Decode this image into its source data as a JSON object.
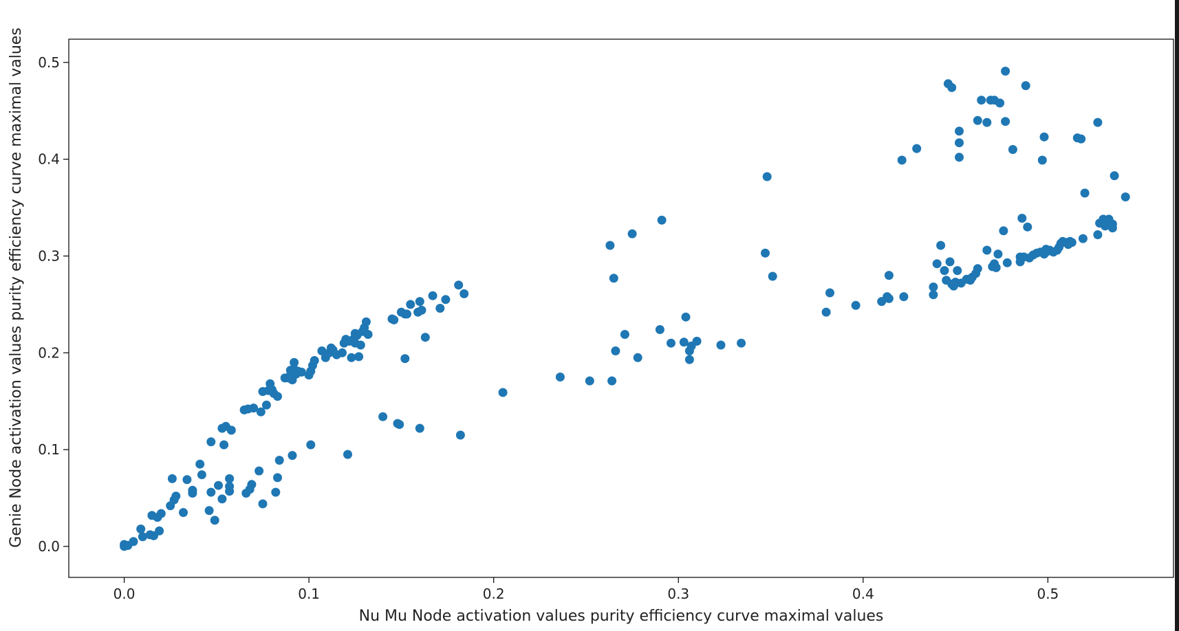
{
  "chart_data": {
    "type": "scatter",
    "title": "",
    "xlabel": "Nu Mu Node activation values purity efficiency curve maximal values",
    "ylabel": "Genie Node activation values purity efficiency curve maximal values",
    "xlim": [
      -0.03,
      0.568
    ],
    "ylim": [
      -0.032,
      0.524
    ],
    "xticks": [
      0.0,
      0.1,
      0.2,
      0.3,
      0.4,
      0.5
    ],
    "xtick_labels": [
      "0.0",
      "0.1",
      "0.2",
      "0.3",
      "0.4",
      "0.5"
    ],
    "yticks": [
      0.0,
      0.1,
      0.2,
      0.3,
      0.4,
      0.5
    ],
    "ytick_labels": [
      "0.0",
      "0.1",
      "0.2",
      "0.3",
      "0.4",
      "0.5"
    ],
    "grid": false,
    "legend": "none",
    "marker_color": "#1f77b4",
    "series": [
      {
        "points": [
          [
            0.0,
            0.0
          ],
          [
            0.0,
            0.002
          ],
          [
            0.002,
            0.001
          ],
          [
            0.005,
            0.005
          ],
          [
            0.009,
            0.018
          ],
          [
            0.01,
            0.01
          ],
          [
            0.014,
            0.012
          ],
          [
            0.015,
            0.032
          ],
          [
            0.016,
            0.011
          ],
          [
            0.018,
            0.03
          ],
          [
            0.019,
            0.016
          ],
          [
            0.02,
            0.034
          ],
          [
            0.025,
            0.042
          ],
          [
            0.027,
            0.048
          ],
          [
            0.028,
            0.052
          ],
          [
            0.026,
            0.07
          ],
          [
            0.032,
            0.035
          ],
          [
            0.034,
            0.069
          ],
          [
            0.037,
            0.055
          ],
          [
            0.037,
            0.058
          ],
          [
            0.041,
            0.085
          ],
          [
            0.042,
            0.074
          ],
          [
            0.046,
            0.037
          ],
          [
            0.047,
            0.056
          ],
          [
            0.047,
            0.108
          ],
          [
            0.049,
            0.027
          ],
          [
            0.051,
            0.063
          ],
          [
            0.053,
            0.049
          ],
          [
            0.053,
            0.122
          ],
          [
            0.054,
            0.105
          ],
          [
            0.055,
            0.124
          ],
          [
            0.057,
            0.062
          ],
          [
            0.057,
            0.07
          ],
          [
            0.057,
            0.057
          ],
          [
            0.058,
            0.12
          ],
          [
            0.065,
            0.141
          ],
          [
            0.066,
            0.055
          ],
          [
            0.067,
            0.142
          ],
          [
            0.068,
            0.059
          ],
          [
            0.069,
            0.064
          ],
          [
            0.07,
            0.143
          ],
          [
            0.073,
            0.078
          ],
          [
            0.074,
            0.139
          ],
          [
            0.075,
            0.044
          ],
          [
            0.075,
            0.16
          ],
          [
            0.077,
            0.146
          ],
          [
            0.078,
            0.161
          ],
          [
            0.079,
            0.168
          ],
          [
            0.08,
            0.162
          ],
          [
            0.081,
            0.158
          ],
          [
            0.082,
            0.056
          ],
          [
            0.083,
            0.155
          ],
          [
            0.083,
            0.071
          ],
          [
            0.084,
            0.089
          ],
          [
            0.087,
            0.174
          ],
          [
            0.089,
            0.174
          ],
          [
            0.09,
            0.177
          ],
          [
            0.09,
            0.182
          ],
          [
            0.091,
            0.172
          ],
          [
            0.091,
            0.094
          ],
          [
            0.092,
            0.183
          ],
          [
            0.092,
            0.19
          ],
          [
            0.093,
            0.178
          ],
          [
            0.094,
            0.181
          ],
          [
            0.096,
            0.18
          ],
          [
            0.1,
            0.177
          ],
          [
            0.101,
            0.181
          ],
          [
            0.101,
            0.105
          ],
          [
            0.102,
            0.187
          ],
          [
            0.103,
            0.192
          ],
          [
            0.107,
            0.202
          ],
          [
            0.109,
            0.195
          ],
          [
            0.111,
            0.2
          ],
          [
            0.112,
            0.205
          ],
          [
            0.113,
            0.203
          ],
          [
            0.115,
            0.198
          ],
          [
            0.118,
            0.2
          ],
          [
            0.119,
            0.21
          ],
          [
            0.12,
            0.214
          ],
          [
            0.121,
            0.095
          ],
          [
            0.122,
            0.212
          ],
          [
            0.123,
            0.195
          ],
          [
            0.124,
            0.214
          ],
          [
            0.125,
            0.21
          ],
          [
            0.125,
            0.22
          ],
          [
            0.126,
            0.218
          ],
          [
            0.127,
            0.196
          ],
          [
            0.128,
            0.208
          ],
          [
            0.129,
            0.222
          ],
          [
            0.13,
            0.226
          ],
          [
            0.131,
            0.232
          ],
          [
            0.132,
            0.219
          ],
          [
            0.14,
            0.134
          ],
          [
            0.145,
            0.235
          ],
          [
            0.146,
            0.234
          ],
          [
            0.148,
            0.127
          ],
          [
            0.149,
            0.126
          ],
          [
            0.15,
            0.242
          ],
          [
            0.152,
            0.24
          ],
          [
            0.152,
            0.194
          ],
          [
            0.153,
            0.24
          ],
          [
            0.155,
            0.25
          ],
          [
            0.159,
            0.242
          ],
          [
            0.16,
            0.253
          ],
          [
            0.16,
            0.122
          ],
          [
            0.161,
            0.244
          ],
          [
            0.163,
            0.216
          ],
          [
            0.167,
            0.259
          ],
          [
            0.171,
            0.246
          ],
          [
            0.174,
            0.255
          ],
          [
            0.181,
            0.27
          ],
          [
            0.182,
            0.115
          ],
          [
            0.184,
            0.261
          ],
          [
            0.205,
            0.159
          ],
          [
            0.236,
            0.175
          ],
          [
            0.252,
            0.171
          ],
          [
            0.263,
            0.311
          ],
          [
            0.264,
            0.171
          ],
          [
            0.265,
            0.277
          ],
          [
            0.266,
            0.202
          ],
          [
            0.271,
            0.219
          ],
          [
            0.275,
            0.323
          ],
          [
            0.278,
            0.195
          ],
          [
            0.29,
            0.224
          ],
          [
            0.291,
            0.337
          ],
          [
            0.296,
            0.21
          ],
          [
            0.303,
            0.211
          ],
          [
            0.304,
            0.237
          ],
          [
            0.306,
            0.193
          ],
          [
            0.306,
            0.202
          ],
          [
            0.307,
            0.207
          ],
          [
            0.31,
            0.212
          ],
          [
            0.323,
            0.208
          ],
          [
            0.334,
            0.21
          ],
          [
            0.347,
            0.303
          ],
          [
            0.348,
            0.382
          ],
          [
            0.351,
            0.279
          ],
          [
            0.38,
            0.242
          ],
          [
            0.382,
            0.262
          ],
          [
            0.396,
            0.249
          ],
          [
            0.41,
            0.253
          ],
          [
            0.413,
            0.258
          ],
          [
            0.414,
            0.28
          ],
          [
            0.414,
            0.256
          ],
          [
            0.421,
            0.399
          ],
          [
            0.422,
            0.258
          ],
          [
            0.429,
            0.411
          ],
          [
            0.438,
            0.26
          ],
          [
            0.438,
            0.268
          ],
          [
            0.44,
            0.292
          ],
          [
            0.442,
            0.311
          ],
          [
            0.444,
            0.285
          ],
          [
            0.445,
            0.275
          ],
          [
            0.446,
            0.478
          ],
          [
            0.447,
            0.294
          ],
          [
            0.448,
            0.474
          ],
          [
            0.448,
            0.271
          ],
          [
            0.449,
            0.269
          ],
          [
            0.45,
            0.273
          ],
          [
            0.451,
            0.285
          ],
          [
            0.452,
            0.429
          ],
          [
            0.452,
            0.417
          ],
          [
            0.452,
            0.402
          ],
          [
            0.453,
            0.272
          ],
          [
            0.456,
            0.276
          ],
          [
            0.458,
            0.275
          ],
          [
            0.459,
            0.278
          ],
          [
            0.461,
            0.282
          ],
          [
            0.462,
            0.287
          ],
          [
            0.462,
            0.44
          ],
          [
            0.464,
            0.461
          ],
          [
            0.467,
            0.306
          ],
          [
            0.467,
            0.438
          ],
          [
            0.469,
            0.461
          ],
          [
            0.47,
            0.289
          ],
          [
            0.471,
            0.461
          ],
          [
            0.471,
            0.292
          ],
          [
            0.472,
            0.288
          ],
          [
            0.473,
            0.302
          ],
          [
            0.474,
            0.458
          ],
          [
            0.476,
            0.326
          ],
          [
            0.477,
            0.491
          ],
          [
            0.477,
            0.439
          ],
          [
            0.478,
            0.293
          ],
          [
            0.481,
            0.41
          ],
          [
            0.485,
            0.299
          ],
          [
            0.485,
            0.294
          ],
          [
            0.486,
            0.339
          ],
          [
            0.487,
            0.299
          ],
          [
            0.488,
            0.476
          ],
          [
            0.489,
            0.33
          ],
          [
            0.49,
            0.298
          ],
          [
            0.492,
            0.301
          ],
          [
            0.494,
            0.303
          ],
          [
            0.496,
            0.304
          ],
          [
            0.497,
            0.399
          ],
          [
            0.498,
            0.423
          ],
          [
            0.498,
            0.302
          ],
          [
            0.499,
            0.307
          ],
          [
            0.5,
            0.305
          ],
          [
            0.501,
            0.306
          ],
          [
            0.503,
            0.304
          ],
          [
            0.505,
            0.306
          ],
          [
            0.506,
            0.309
          ],
          [
            0.507,
            0.313
          ],
          [
            0.508,
            0.315
          ],
          [
            0.51,
            0.314
          ],
          [
            0.511,
            0.312
          ],
          [
            0.512,
            0.315
          ],
          [
            0.513,
            0.314
          ],
          [
            0.516,
            0.422
          ],
          [
            0.518,
            0.421
          ],
          [
            0.519,
            0.318
          ],
          [
            0.52,
            0.365
          ],
          [
            0.527,
            0.322
          ],
          [
            0.527,
            0.438
          ],
          [
            0.528,
            0.334
          ],
          [
            0.529,
            0.335
          ],
          [
            0.53,
            0.338
          ],
          [
            0.531,
            0.331
          ],
          [
            0.532,
            0.332
          ],
          [
            0.533,
            0.338
          ],
          [
            0.535,
            0.329
          ],
          [
            0.535,
            0.333
          ],
          [
            0.536,
            0.383
          ],
          [
            0.542,
            0.361
          ]
        ]
      }
    ]
  }
}
